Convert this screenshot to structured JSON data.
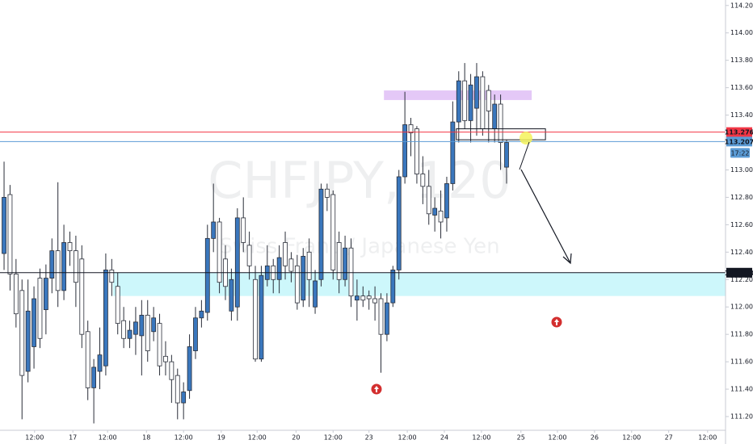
{
  "chart_data": {
    "type": "candlestick",
    "symbol": "CHFJPY, 120",
    "name": "Swiss Franc / Japanese Yen",
    "up_color": "#3a77bd",
    "down_color": "#ffffff",
    "border_color": "#2a2e39",
    "x": [
      0,
      1,
      2,
      3,
      4,
      5,
      6,
      7,
      8,
      9,
      10,
      11,
      12,
      13,
      14,
      15,
      16,
      17,
      18,
      19,
      20,
      21,
      22,
      23,
      24,
      25,
      26,
      27,
      28,
      29,
      30,
      31,
      32,
      33,
      34,
      35,
      36,
      37,
      38,
      39,
      40,
      41,
      42,
      43,
      44,
      45,
      46,
      47,
      48,
      49,
      50,
      51,
      52,
      53,
      54,
      55,
      56,
      57,
      58,
      59,
      60,
      61,
      62,
      63,
      64,
      65,
      66,
      67,
      68,
      69,
      70,
      71,
      72,
      73,
      74,
      75,
      76,
      77,
      78,
      79,
      80,
      81,
      82,
      83,
      84
    ],
    "open": [
      112.39,
      112.82,
      112.24,
      112.12,
      111.53,
      111.71,
      112.21,
      111.98,
      112.21,
      112.41,
      112.12,
      112.47,
      112.41,
      112.35,
      111.82,
      111.41,
      111.53,
      111.57,
      112.27,
      112.15,
      111.9,
      111.77,
      111.8,
      111.79,
      111.94,
      111.82,
      111.88,
      111.64,
      111.6,
      111.5,
      111.3,
      111.39,
      111.68,
      111.92,
      111.96,
      112.5,
      112.62,
      112.35,
      111.97,
      112.0,
      112.65,
      112.45,
      112.2,
      111.62,
      112.2,
      112.3,
      112.2,
      112.47,
      112.35,
      112.3,
      112.05,
      112.4,
      112.0,
      112.2,
      112.86,
      112.82,
      112.47,
      112.2,
      112.43,
      112.05,
      112.08,
      112.08,
      112.06,
      112.06,
      111.8,
      112.03,
      112.27,
      112.95,
      113.33,
      113.3,
      112.97,
      112.88,
      112.67,
      112.7,
      112.65,
      112.9,
      113.35,
      113.65,
      113.36,
      113.45,
      113.68,
      113.58,
      113.3,
      113.48,
      113.02
    ],
    "high": [
      113.06,
      112.89,
      112.35,
      112.2,
      112.2,
      112.15,
      112.28,
      112.31,
      112.5,
      112.91,
      112.6,
      112.55,
      112.52,
      112.45,
      111.9,
      111.62,
      111.85,
      112.39,
      112.35,
      112.25,
      112.0,
      111.9,
      112.0,
      112.05,
      112.05,
      112.0,
      111.95,
      111.75,
      111.65,
      111.55,
      111.45,
      111.8,
      112.0,
      112.05,
      112.6,
      112.9,
      112.65,
      112.45,
      112.28,
      112.72,
      112.8,
      112.55,
      112.3,
      112.3,
      112.45,
      112.35,
      112.45,
      112.55,
      112.4,
      112.38,
      112.43,
      112.5,
      112.27,
      112.9,
      112.9,
      112.85,
      112.55,
      112.52,
      112.5,
      112.2,
      112.15,
      112.12,
      112.15,
      112.1,
      112.1,
      112.3,
      113.0,
      113.57,
      113.38,
      113.32,
      113.1,
      113.0,
      112.8,
      112.85,
      112.95,
      113.5,
      113.72,
      113.78,
      113.7,
      113.78,
      113.72,
      113.62,
      113.55,
      113.55,
      113.22
    ],
    "low": [
      112.27,
      112.12,
      111.85,
      111.18,
      111.45,
      111.55,
      111.7,
      111.8,
      112.1,
      112.0,
      112.05,
      112.3,
      112.0,
      111.7,
      111.32,
      111.15,
      111.4,
      111.5,
      112.08,
      111.8,
      111.7,
      111.7,
      111.65,
      111.5,
      111.6,
      111.75,
      111.5,
      111.5,
      111.3,
      111.18,
      111.18,
      111.33,
      111.62,
      111.85,
      111.9,
      112.4,
      112.1,
      112.05,
      111.9,
      111.9,
      112.4,
      112.2,
      111.6,
      111.6,
      112.15,
      112.1,
      112.1,
      112.2,
      112.18,
      111.98,
      112.0,
      112.0,
      111.95,
      112.15,
      112.7,
      112.2,
      112.1,
      112.15,
      112.0,
      111.9,
      112.0,
      111.98,
      111.9,
      111.52,
      111.75,
      112.0,
      112.2,
      112.9,
      113.1,
      112.9,
      112.75,
      112.6,
      112.55,
      112.5,
      112.55,
      112.85,
      113.2,
      113.3,
      113.2,
      113.25,
      113.25,
      113.2,
      113.2,
      113.0,
      112.9
    ],
    "close": [
      112.8,
      112.24,
      111.95,
      111.5,
      111.97,
      112.06,
      111.77,
      112.21,
      112.41,
      112.12,
      112.47,
      112.41,
      112.18,
      111.8,
      111.41,
      111.56,
      111.65,
      112.27,
      112.18,
      111.88,
      111.77,
      111.83,
      111.89,
      111.94,
      111.68,
      111.92,
      111.57,
      111.6,
      111.47,
      111.3,
      111.38,
      111.71,
      111.92,
      111.97,
      112.5,
      112.62,
      112.18,
      112.15,
      112.2,
      112.65,
      112.47,
      112.3,
      111.62,
      112.23,
      112.3,
      112.2,
      112.36,
      112.3,
      112.26,
      112.03,
      112.37,
      112.2,
      112.19,
      112.86,
      112.8,
      112.27,
      112.2,
      112.43,
      112.08,
      112.08,
      112.05,
      112.06,
      112.03,
      111.8,
      112.03,
      112.27,
      112.95,
      113.33,
      113.27,
      112.97,
      112.88,
      112.68,
      112.72,
      112.62,
      112.9,
      113.35,
      113.65,
      113.36,
      113.62,
      113.68,
      113.3,
      113.43,
      113.48,
      113.2,
      113.2
    ],
    "xlim": [
      -0.68,
      120.6
    ],
    "ylim": [
      111.1,
      114.24
    ],
    "xticks": [
      {
        "value": 5.1,
        "label": "12:00"
      },
      {
        "value": 11.5,
        "label": "17"
      },
      {
        "value": 17.3,
        "label": "12:00"
      },
      {
        "value": 23.8,
        "label": "18"
      },
      {
        "value": 30.0,
        "label": "12:00"
      },
      {
        "value": 36.3,
        "label": "19"
      },
      {
        "value": 42.3,
        "label": "12:00"
      },
      {
        "value": 48.8,
        "label": "20"
      },
      {
        "value": 55.0,
        "label": "12:00"
      },
      {
        "value": 61.0,
        "label": "23"
      },
      {
        "value": 67.4,
        "label": "12:00"
      },
      {
        "value": 73.6,
        "label": "24"
      },
      {
        "value": 79.8,
        "label": "12:00"
      },
      {
        "value": 86.4,
        "label": "25"
      },
      {
        "value": 92.5,
        "label": "12:00"
      },
      {
        "value": 98.7,
        "label": "26"
      },
      {
        "value": 104.9,
        "label": "12:00"
      },
      {
        "value": 111.1,
        "label": "27"
      },
      {
        "value": 117.6,
        "label": "12:00"
      }
    ],
    "yticks": [
      {
        "value": 111.2,
        "label": "111.200"
      },
      {
        "value": 111.4,
        "label": "111.400"
      },
      {
        "value": 111.6,
        "label": "111.600"
      },
      {
        "value": 111.8,
        "label": "111.800"
      },
      {
        "value": 112.0,
        "label": "112.000"
      },
      {
        "value": 112.2,
        "label": "112.200"
      },
      {
        "value": 112.4,
        "label": "112.400"
      },
      {
        "value": 112.6,
        "label": "112.600"
      },
      {
        "value": 112.8,
        "label": "112.800"
      },
      {
        "value": 113.0,
        "label": "113.000"
      },
      {
        "value": 113.4,
        "label": "113.400"
      },
      {
        "value": 113.6,
        "label": "113.600"
      },
      {
        "value": 113.8,
        "label": "113.800"
      },
      {
        "value": 114.0,
        "label": "114.000"
      },
      {
        "value": 114.2,
        "label": "114.200"
      }
    ],
    "zones": [
      {
        "xlim": [
          18.2,
          120.6
        ],
        "ylim": [
          112.08,
          112.25
        ],
        "color": "#cdf7fb"
      },
      {
        "xlim": [
          63.5,
          88.2
        ],
        "ylim": [
          113.51,
          113.58
        ],
        "color": "#e4c8f7"
      }
    ],
    "price_lines": [
      {
        "value": 113.276,
        "label": "113.276",
        "color": "#f23645"
      },
      {
        "value": 113.207,
        "label": "113.207",
        "color": "#5b9bd5"
      },
      {
        "value": 112.25,
        "label": "112.250",
        "color": "#131722"
      }
    ],
    "box": {
      "xlim": [
        75.6,
        90.5
      ],
      "ylim": [
        113.22,
        113.3
      ]
    },
    "countdown": "17:22"
  }
}
